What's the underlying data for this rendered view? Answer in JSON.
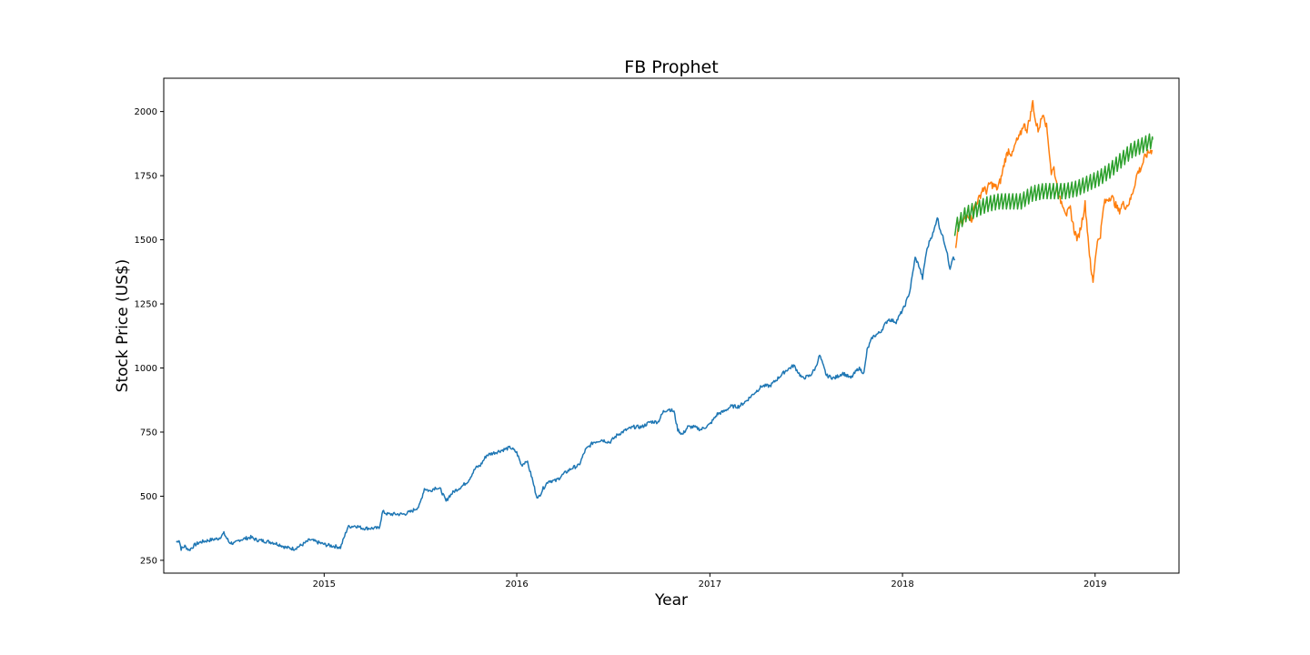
{
  "chart_data": {
    "type": "line",
    "title": "FB Prophet",
    "xlabel": "Year",
    "ylabel": "Stock Price (US$)",
    "xlim": [
      "2014-03-03",
      "2019-06-09"
    ],
    "ylim": [
      200,
      2130
    ],
    "x_ticks": [
      "2015",
      "2016",
      "2017",
      "2018",
      "2019"
    ],
    "y_ticks": [
      250,
      500,
      750,
      1000,
      1250,
      1500,
      1750,
      2000
    ],
    "grid": false,
    "legend": "none",
    "series": [
      {
        "color": "#1f77b4",
        "x": [
          "2014-03-27",
          "2014-04-01",
          "2014-04-05",
          "2014-04-12",
          "2014-04-20",
          "2014-05-01",
          "2014-05-10",
          "2014-05-20",
          "2014-06-01",
          "2014-06-15",
          "2014-06-25",
          "2014-07-05",
          "2014-07-15",
          "2014-07-25",
          "2014-08-05",
          "2014-08-15",
          "2014-08-25",
          "2014-09-10",
          "2014-09-25",
          "2014-10-10",
          "2014-10-20",
          "2014-11-05",
          "2014-11-20",
          "2014-12-05",
          "2014-12-20",
          "2015-01-05",
          "2015-01-20",
          "2015-02-01",
          "2015-02-15",
          "2015-03-01",
          "2015-03-15",
          "2015-04-01",
          "2015-04-15",
          "2015-04-22",
          "2015-05-01",
          "2015-05-15",
          "2015-06-01",
          "2015-06-15",
          "2015-06-30",
          "2015-07-10",
          "2015-07-20",
          "2015-08-01",
          "2015-08-10",
          "2015-08-20",
          "2015-08-26",
          "2015-09-05",
          "2015-09-20",
          "2015-10-01",
          "2015-10-15",
          "2015-10-24",
          "2015-11-05",
          "2015-11-20",
          "2015-12-05",
          "2015-12-20",
          "2016-01-01",
          "2016-01-10",
          "2016-01-20",
          "2016-01-30",
          "2016-02-05",
          "2016-02-10",
          "2016-02-20",
          "2016-03-01",
          "2016-03-15",
          "2016-04-01",
          "2016-04-15",
          "2016-04-28",
          "2016-05-10",
          "2016-05-25",
          "2016-06-10",
          "2016-06-25",
          "2016-07-10",
          "2016-07-28",
          "2016-08-10",
          "2016-08-25",
          "2016-09-10",
          "2016-09-25",
          "2016-10-05",
          "2016-10-15",
          "2016-10-25",
          "2016-11-01",
          "2016-11-10",
          "2016-11-20",
          "2016-12-01",
          "2016-12-15",
          "2017-01-01",
          "2017-01-15",
          "2017-01-27",
          "2017-02-10",
          "2017-02-25",
          "2017-03-10",
          "2017-03-25",
          "2017-04-10",
          "2017-04-25",
          "2017-05-10",
          "2017-05-25",
          "2017-06-09",
          "2017-06-25",
          "2017-07-10",
          "2017-07-20",
          "2017-07-28",
          "2017-08-10",
          "2017-08-25",
          "2017-09-10",
          "2017-09-25",
          "2017-10-10",
          "2017-10-20",
          "2017-10-26",
          "2017-11-05",
          "2017-11-20",
          "2017-12-05",
          "2017-12-20",
          "2018-01-05",
          "2018-01-15",
          "2018-01-25",
          "2018-02-01",
          "2018-02-08",
          "2018-02-15",
          "2018-02-22",
          "2018-03-01",
          "2018-03-08",
          "2018-03-12",
          "2018-03-20",
          "2018-03-27",
          "2018-04-01",
          "2018-04-06",
          "2018-04-10"
        ],
        "y": [
          320,
          330,
          295,
          305,
          290,
          310,
          320,
          325,
          330,
          335,
          355,
          320,
          315,
          330,
          335,
          340,
          330,
          325,
          320,
          310,
          300,
          295,
          310,
          330,
          320,
          310,
          305,
          300,
          380,
          385,
          375,
          375,
          375,
          440,
          430,
          430,
          430,
          440,
          460,
          530,
          520,
          535,
          525,
          480,
          500,
          520,
          540,
          560,
          610,
          620,
          660,
          670,
          680,
          690,
          670,
          620,
          640,
          570,
          520,
          490,
          530,
          560,
          560,
          590,
          610,
          620,
          680,
          710,
          720,
          710,
          740,
          760,
          770,
          770,
          790,
          790,
          830,
          840,
          830,
          760,
          740,
          770,
          770,
          760,
          780,
          820,
          830,
          850,
          850,
          870,
          900,
          930,
          930,
          960,
          990,
          1010,
          960,
          970,
          1000,
          1050,
          970,
          960,
          980,
          960,
          1000,
          980,
          1070,
          1120,
          1140,
          1190,
          1180,
          1240,
          1300,
          1430,
          1400,
          1350,
          1450,
          1500,
          1530,
          1590,
          1550,
          1500,
          1450,
          1380,
          1430,
          1420
        ]
      },
      {
        "color": "#ff7f0e",
        "x": [
          "2018-04-12",
          "2018-04-16",
          "2018-04-20",
          "2018-04-24",
          "2018-04-28",
          "2018-05-05",
          "2018-05-12",
          "2018-05-19",
          "2018-05-26",
          "2018-06-02",
          "2018-06-09",
          "2018-06-16",
          "2018-06-23",
          "2018-06-30",
          "2018-07-07",
          "2018-07-14",
          "2018-07-21",
          "2018-07-28",
          "2018-08-04",
          "2018-08-11",
          "2018-08-18",
          "2018-08-25",
          "2018-09-01",
          "2018-09-05",
          "2018-09-10",
          "2018-09-15",
          "2018-09-20",
          "2018-09-25",
          "2018-10-01",
          "2018-10-05",
          "2018-10-10",
          "2018-10-15",
          "2018-10-20",
          "2018-10-25",
          "2018-11-01",
          "2018-11-08",
          "2018-11-15",
          "2018-11-22",
          "2018-11-29",
          "2018-12-06",
          "2018-12-13",
          "2018-12-20",
          "2018-12-24",
          "2018-12-28",
          "2019-01-04",
          "2019-01-11",
          "2019-01-18",
          "2019-01-25",
          "2019-02-01",
          "2019-02-08",
          "2019-02-15",
          "2019-02-22",
          "2019-03-01",
          "2019-03-08",
          "2019-03-15",
          "2019-03-22",
          "2019-03-29",
          "2019-04-05",
          "2019-04-12",
          "2019-04-19"
        ],
        "y": [
          1460,
          1530,
          1580,
          1560,
          1580,
          1600,
          1580,
          1640,
          1660,
          1700,
          1690,
          1720,
          1710,
          1700,
          1740,
          1810,
          1850,
          1830,
          1880,
          1900,
          1950,
          1930,
          1990,
          2040,
          1960,
          1930,
          1960,
          2000,
          1940,
          1870,
          1760,
          1780,
          1720,
          1660,
          1640,
          1600,
          1620,
          1540,
          1500,
          1560,
          1640,
          1480,
          1380,
          1340,
          1480,
          1520,
          1640,
          1660,
          1670,
          1640,
          1610,
          1640,
          1630,
          1650,
          1700,
          1760,
          1780,
          1820,
          1840,
          1850
        ]
      },
      {
        "color": "#2ca02c",
        "x": [
          "2018-04-10",
          "2018-05-01",
          "2018-05-22",
          "2018-06-12",
          "2018-07-03",
          "2018-07-24",
          "2018-08-14",
          "2018-09-04",
          "2018-09-25",
          "2018-10-16",
          "2018-11-06",
          "2018-11-27",
          "2018-12-18",
          "2019-01-08",
          "2019-01-29",
          "2019-02-19",
          "2019-03-12",
          "2019-04-02",
          "2019-04-20"
        ],
        "y": [
          1545,
          1600,
          1620,
          1640,
          1650,
          1650,
          1650,
          1680,
          1690,
          1690,
          1690,
          1700,
          1720,
          1740,
          1770,
          1810,
          1850,
          1870,
          1890
        ],
        "weekly_amplitude": 60
      }
    ]
  }
}
